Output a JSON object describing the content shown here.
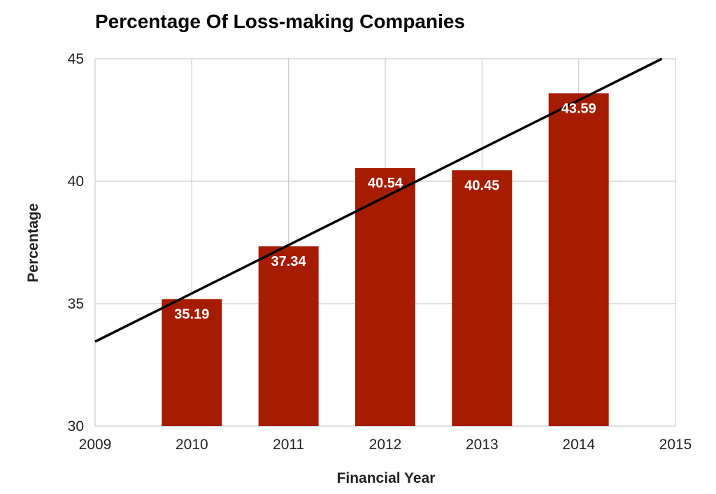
{
  "chart_data": {
    "type": "bar",
    "title": "Percentage Of Loss-making Companies",
    "xlabel": "Financial Year",
    "ylabel": "Percentage",
    "categories": [
      "2010",
      "2011",
      "2012",
      "2013",
      "2014"
    ],
    "x": [
      2010,
      2011,
      2012,
      2013,
      2014
    ],
    "values": [
      35.19,
      37.34,
      40.54,
      40.45,
      43.59
    ],
    "data_labels": [
      "35.19",
      "37.34",
      "40.54",
      "40.45",
      "43.59"
    ],
    "xlim": [
      2009,
      2015
    ],
    "ylim": [
      30,
      45
    ],
    "x_ticks": [
      "2009",
      "2010",
      "2011",
      "2012",
      "2013",
      "2014",
      "2015"
    ],
    "y_ticks": [
      "30",
      "35",
      "40",
      "45"
    ],
    "grid": true,
    "trendline": {
      "type": "linear",
      "points": [
        [
          2009,
          33.45
        ],
        [
          2014.86,
          45.0
        ]
      ]
    },
    "colors": {
      "bar": "#a61c00",
      "trendline": "#000000",
      "grid": "#cccccc",
      "label": "#ffffff"
    }
  }
}
